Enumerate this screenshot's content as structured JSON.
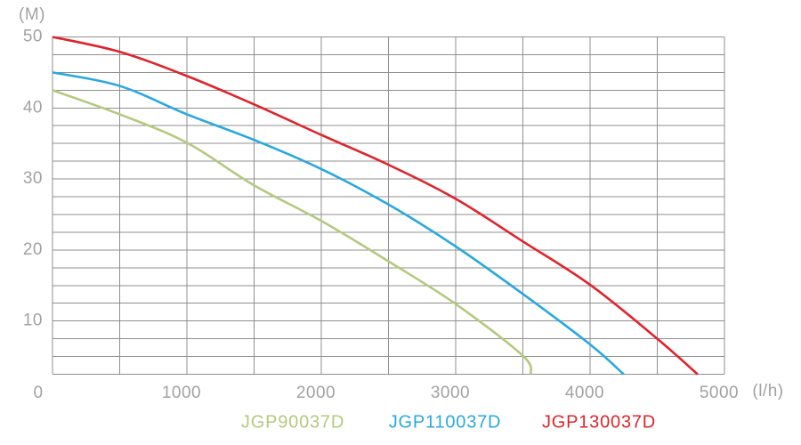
{
  "chart_data": {
    "type": "line",
    "title": "",
    "xlabel": "(l/h)",
    "ylabel": "(M)",
    "x_ticks": [
      0,
      1000,
      2000,
      3000,
      4000,
      5000
    ],
    "y_ticks": [
      10,
      20,
      30,
      40,
      50
    ],
    "xlim": [
      0,
      5000
    ],
    "ylim": [
      2.5,
      50
    ],
    "x_grid_step": 500,
    "y_grid_step": 2.5,
    "grid": true,
    "grid_color": "#8f8f8f",
    "tick_label_color": "#a2a2a2",
    "legend_position": "bottom",
    "series": [
      {
        "name": "JGP90037D",
        "color": "#b4c97e",
        "points": [
          [
            0,
            42.5
          ],
          [
            500,
            39.1
          ],
          [
            1000,
            35.1
          ],
          [
            1500,
            29.1
          ],
          [
            2000,
            24.1
          ],
          [
            2500,
            18.4
          ],
          [
            3000,
            12.4
          ],
          [
            3500,
            5.1
          ],
          [
            3560,
            2.5
          ]
        ]
      },
      {
        "name": "JGP110037D",
        "color": "#29a8e0",
        "points": [
          [
            0,
            45
          ],
          [
            500,
            43.1
          ],
          [
            1000,
            39.1
          ],
          [
            1500,
            35.5
          ],
          [
            2000,
            31.4
          ],
          [
            2500,
            26.4
          ],
          [
            3000,
            20.5
          ],
          [
            3500,
            13.8
          ],
          [
            4000,
            6.7
          ],
          [
            4250,
            2.5
          ]
        ]
      },
      {
        "name": "JGP130037D",
        "color": "#e1232a",
        "points": [
          [
            0,
            50
          ],
          [
            500,
            47.9
          ],
          [
            1000,
            44.5
          ],
          [
            1500,
            40.5
          ],
          [
            2000,
            36.2
          ],
          [
            2500,
            32
          ],
          [
            3000,
            27.2
          ],
          [
            3500,
            21.2
          ],
          [
            4000,
            15.1
          ],
          [
            4500,
            7.5
          ],
          [
            4800,
            2.5
          ]
        ]
      }
    ]
  }
}
